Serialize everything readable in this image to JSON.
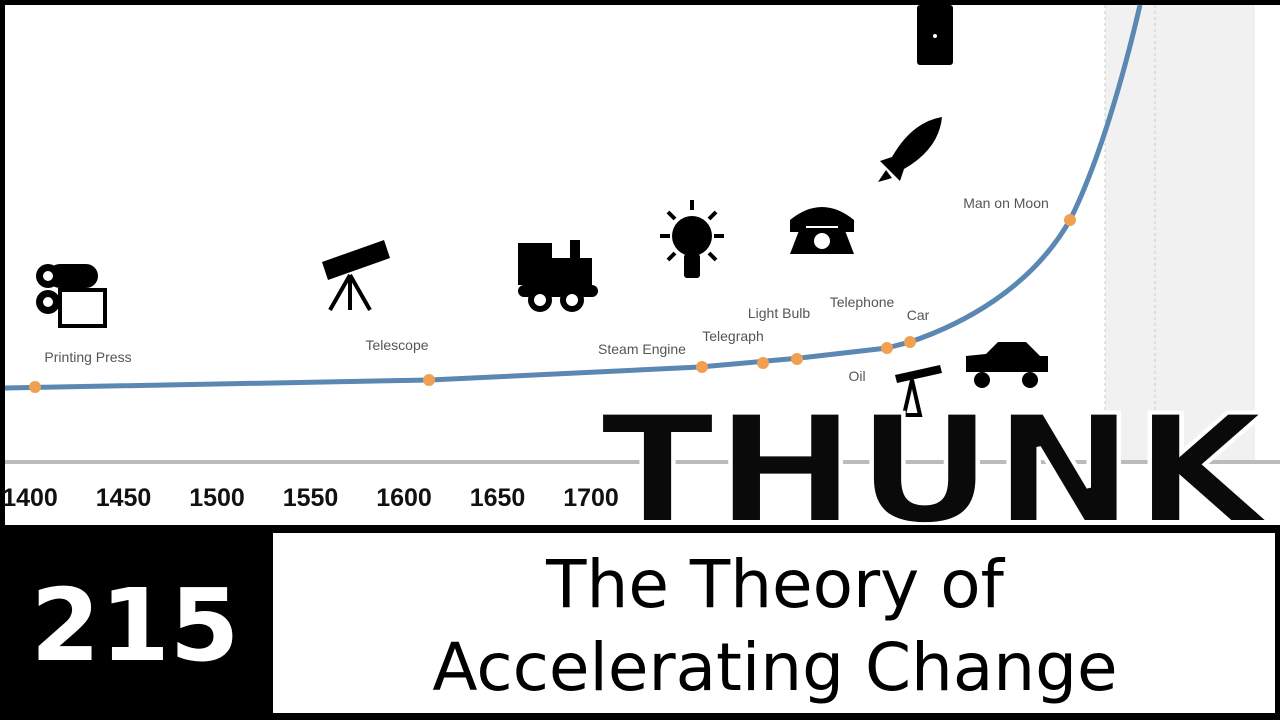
{
  "timeline": {
    "axis_labels": [
      "1400",
      "1450",
      "1500",
      "1550",
      "1600",
      "1650",
      "1700"
    ],
    "milestones": [
      "Printing Press",
      "Telescope",
      "Steam Engine",
      "Telegraph",
      "Light Bulb",
      "Telephone",
      "Car",
      "Oil",
      "Man on Moon"
    ]
  },
  "logo": "THUNK",
  "episode": "215",
  "title_lines": [
    "The Theory of",
    "Accelerating Change"
  ]
}
